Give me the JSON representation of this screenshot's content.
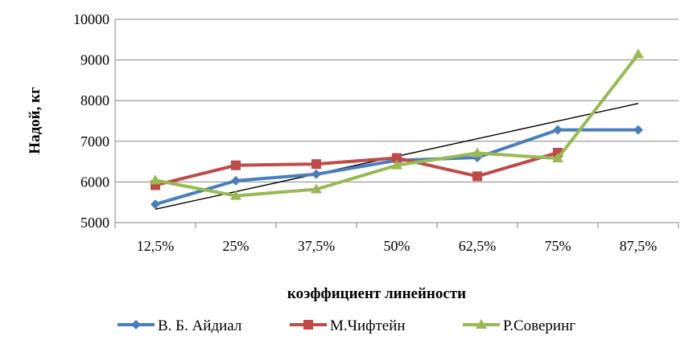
{
  "chart_data": {
    "type": "line",
    "categories": [
      "12,5%",
      "25%",
      "37,5%",
      "50%",
      "62,5%",
      "75%",
      "87,5%"
    ],
    "series": [
      {
        "name": "В. Б. Айдиал",
        "values": [
          5450,
          6030,
          6190,
          6530,
          6600,
          7280,
          7280
        ],
        "color": "#4a7ebb",
        "marker": "diamond"
      },
      {
        "name": "М.Чифтейн",
        "values": [
          5920,
          6410,
          6440,
          6590,
          6140,
          6720,
          null
        ],
        "color": "#be4b48",
        "marker": "square"
      },
      {
        "name": "Р.Соверинг",
        "values": [
          6040,
          5660,
          5820,
          6410,
          6710,
          6580,
          9140
        ],
        "color": "#98b954",
        "marker": "triangle"
      }
    ],
    "trendline": {
      "start": 5330,
      "end": 7930,
      "color": "#000000"
    },
    "xlabel": "коэффициент линейности",
    "ylabel": "Надой, кг",
    "ylim": [
      5000,
      10000
    ],
    "yticks": [
      5000,
      6000,
      7000,
      8000,
      9000,
      10000
    ],
    "grid": true,
    "legend": "bottom"
  }
}
